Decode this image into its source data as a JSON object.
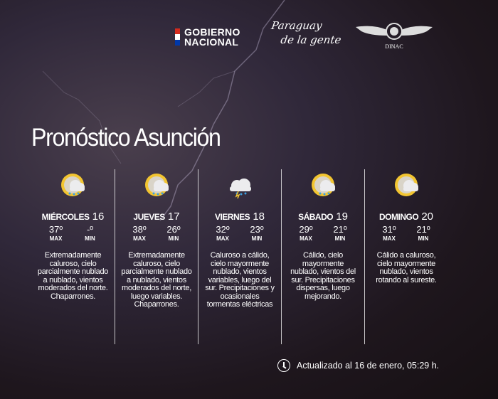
{
  "header": {
    "gobierno_line1": "GOBIERNO",
    "gobierno_line2": "NACIONAL",
    "slogan_line1": "Paraguay",
    "slogan_line2": "de la gente",
    "dinac": "DINAC"
  },
  "title": "Pronóstico Asunción",
  "days": [
    {
      "name": "MIÉRCOLES",
      "date": "16",
      "max": "37º",
      "min": "-º",
      "max_label": "MAX",
      "min_label": "MIN",
      "icon": "partly-cloudy-rain-icon",
      "desc": "Extremadamente caluroso, cielo parcialmente nublado a nublado, vientos moderados del norte. Chaparrones."
    },
    {
      "name": "JUEVES",
      "date": "17",
      "max": "38º",
      "min": "26º",
      "max_label": "MAX",
      "min_label": "MIN",
      "icon": "partly-cloudy-rain-icon",
      "desc": "Extremadamente caluroso, cielo parcialmente nublado a nublado, vientos moderados del norte, luego variables. Chaparrones."
    },
    {
      "name": "VIERNES",
      "date": "18",
      "max": "32º",
      "min": "23º",
      "max_label": "MAX",
      "min_label": "MIN",
      "icon": "thunderstorm-icon",
      "desc": "Caluroso a cálido, cielo mayormente nublado, vientos variables, luego del sur. Precipitaciones y ocasionales tormentas eléctricas"
    },
    {
      "name": "SÁBADO",
      "date": "19",
      "max": "29º",
      "min": "21º",
      "max_label": "MAX",
      "min_label": "MIN",
      "icon": "partly-cloudy-rain-icon",
      "desc": "Cálido, cielo mayormente nublado, vientos del sur. Precipitaciones dispersas, luego mejorando."
    },
    {
      "name": "DOMINGO",
      "date": "20",
      "max": "31º",
      "min": "21º",
      "max_label": "MAX",
      "min_label": "MIN",
      "icon": "partly-cloudy-icon",
      "desc": "Cálido a caluroso, cielo mayormente nublado, vientos rotando al sureste."
    }
  ],
  "footer": {
    "updated": "Actualizado al 16 de enero, 05:29 h."
  },
  "colors": {
    "sun": "#f2c531",
    "cloud": "#e8e8ea",
    "flag_red": "#d52b1e",
    "flag_blue": "#0038a8"
  }
}
